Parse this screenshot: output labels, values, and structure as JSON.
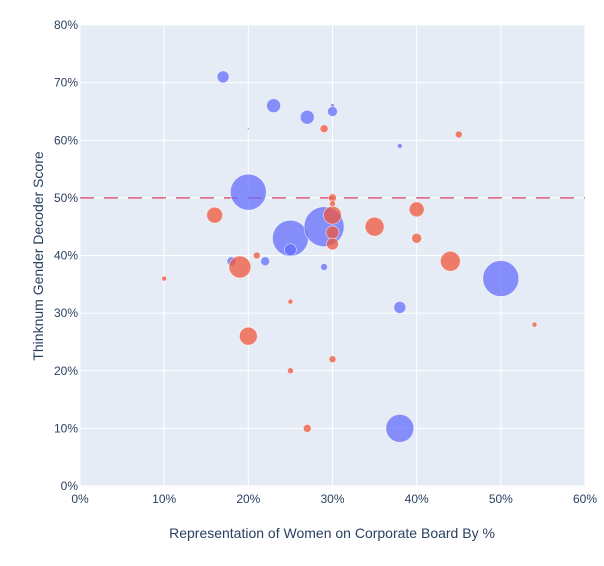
{
  "chart_data": {
    "type": "scatter",
    "xlabel": "Representation of Women on Corporate Board By %",
    "ylabel": "Thinknum Gender Decoder Score",
    "xlim": [
      0,
      60
    ],
    "ylim": [
      0,
      80
    ],
    "x_ticks": [
      0,
      10,
      20,
      30,
      40,
      50,
      60
    ],
    "x_tick_labels": [
      "0%",
      "10%",
      "20%",
      "30%",
      "40%",
      "50%",
      "60%"
    ],
    "y_ticks": [
      0,
      10,
      20,
      30,
      40,
      50,
      60,
      70,
      80
    ],
    "y_tick_labels": [
      "0%",
      "10%",
      "20%",
      "30%",
      "40%",
      "50%",
      "60%",
      "70%",
      "80%"
    ],
    "reference_line": {
      "y": 50,
      "style": "dashed",
      "color": "#e0607a"
    },
    "grid": true,
    "colors": {
      "blue": "#636efa",
      "red": "#ef553b",
      "plot_bg": "#e5ecf6",
      "text": "#2a3f5f"
    },
    "series": [
      {
        "name": "blue",
        "color": "#636efa",
        "points": [
          {
            "x": 17,
            "y": 71,
            "size": 6
          },
          {
            "x": 20,
            "y": 62,
            "size": 1
          },
          {
            "x": 23,
            "y": 66,
            "size": 7
          },
          {
            "x": 27,
            "y": 64,
            "size": 7
          },
          {
            "x": 30,
            "y": 66,
            "size": 2
          },
          {
            "x": 30,
            "y": 65,
            "size": 5
          },
          {
            "x": 38,
            "y": 59,
            "size": 2.5
          },
          {
            "x": 20,
            "y": 51,
            "size": 18
          },
          {
            "x": 25,
            "y": 43,
            "size": 18
          },
          {
            "x": 29,
            "y": 45,
            "size": 20
          },
          {
            "x": 25,
            "y": 41,
            "size": 6
          },
          {
            "x": 18,
            "y": 39,
            "size": 4.5
          },
          {
            "x": 22,
            "y": 39,
            "size": 4.5
          },
          {
            "x": 29,
            "y": 38,
            "size": 3.5
          },
          {
            "x": 50,
            "y": 36,
            "size": 18
          },
          {
            "x": 38,
            "y": 31,
            "size": 6
          },
          {
            "x": 38,
            "y": 10,
            "size": 14
          }
        ]
      },
      {
        "name": "red",
        "color": "#ef553b",
        "points": [
          {
            "x": 29,
            "y": 62,
            "size": 4
          },
          {
            "x": 45,
            "y": 61,
            "size": 3.5
          },
          {
            "x": 30,
            "y": 50,
            "size": 4
          },
          {
            "x": 30,
            "y": 49,
            "size": 3
          },
          {
            "x": 30,
            "y": 47,
            "size": 9
          },
          {
            "x": 16,
            "y": 47,
            "size": 8
          },
          {
            "x": 40,
            "y": 48,
            "size": 7.5
          },
          {
            "x": 35,
            "y": 45,
            "size": 9.5
          },
          {
            "x": 30,
            "y": 44,
            "size": 6.5
          },
          {
            "x": 30,
            "y": 42,
            "size": 6
          },
          {
            "x": 40,
            "y": 43,
            "size": 5
          },
          {
            "x": 21,
            "y": 40,
            "size": 3.5
          },
          {
            "x": 44,
            "y": 39,
            "size": 10
          },
          {
            "x": 19,
            "y": 38,
            "size": 11
          },
          {
            "x": 10,
            "y": 36,
            "size": 2.5
          },
          {
            "x": 25,
            "y": 32,
            "size": 2.5
          },
          {
            "x": 54,
            "y": 28,
            "size": 2.5
          },
          {
            "x": 20,
            "y": 26,
            "size": 9
          },
          {
            "x": 30,
            "y": 22,
            "size": 3.5
          },
          {
            "x": 25,
            "y": 20,
            "size": 3
          },
          {
            "x": 27,
            "y": 10,
            "size": 4
          }
        ]
      }
    ]
  }
}
